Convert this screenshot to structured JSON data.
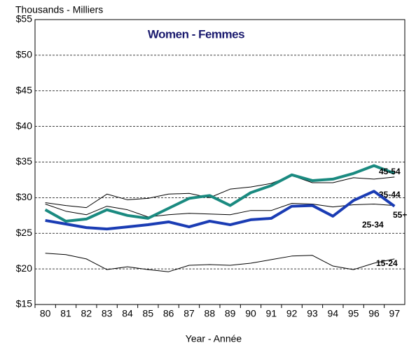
{
  "chart_data": {
    "type": "line",
    "title": "Women - Femmes",
    "y_label": "Thousands - Milliers",
    "x_label": "Year - Année",
    "categories": [
      "80",
      "81",
      "82",
      "83",
      "84",
      "85",
      "86",
      "87",
      "88",
      "89",
      "90",
      "91",
      "92",
      "93",
      "94",
      "95",
      "96",
      "97"
    ],
    "ylim": [
      15,
      55
    ],
    "yticks": [
      {
        "value": 15,
        "label": "$15"
      },
      {
        "value": 20,
        "label": "$20"
      },
      {
        "value": 25,
        "label": "$25"
      },
      {
        "value": 30,
        "label": "$30"
      },
      {
        "value": 35,
        "label": "$35"
      },
      {
        "value": 40,
        "label": "$40"
      },
      {
        "value": 45,
        "label": "$45"
      },
      {
        "value": 50,
        "label": "$50"
      },
      {
        "value": 55,
        "label": "$55"
      }
    ],
    "grid": true,
    "series": [
      {
        "name": "35-44",
        "color": "#000000",
        "values": [
          29.3,
          28.9,
          28.6,
          30.5,
          29.7,
          29.9,
          30.5,
          30.6,
          30.0,
          31.2,
          31.5,
          32.0,
          33.1,
          32.1,
          32.1,
          32.8,
          32.6,
          32.9
        ]
      },
      {
        "name": "55+",
        "color": "#000000",
        "values": [
          29.1,
          28.1,
          27.6,
          28.8,
          28.3,
          27.3,
          27.6,
          27.8,
          27.7,
          27.6,
          28.2,
          28.2,
          29.2,
          29.1,
          28.7,
          29.0,
          29.1,
          28.9
        ]
      },
      {
        "name": "15-24",
        "color": "#000000",
        "values": [
          22.2,
          22.0,
          21.4,
          19.9,
          20.3,
          19.9,
          19.6,
          20.5,
          20.6,
          20.5,
          20.8,
          21.3,
          21.8,
          21.9,
          20.4,
          19.9,
          20.8,
          21.4
        ]
      },
      {
        "name": "45-54",
        "color": "#1a8a80",
        "values": [
          28.3,
          26.7,
          27.0,
          28.3,
          27.5,
          27.1,
          28.5,
          29.9,
          30.3,
          28.9,
          30.7,
          31.7,
          33.2,
          32.4,
          32.6,
          33.4,
          34.5,
          33.4
        ]
      },
      {
        "name": "25-34",
        "color": "#1a3cb4",
        "values": [
          26.8,
          26.3,
          25.8,
          25.6,
          25.9,
          26.2,
          26.6,
          25.9,
          26.7,
          26.2,
          26.9,
          27.1,
          28.8,
          28.9,
          27.4,
          29.6,
          30.9,
          28.8
        ]
      }
    ]
  }
}
